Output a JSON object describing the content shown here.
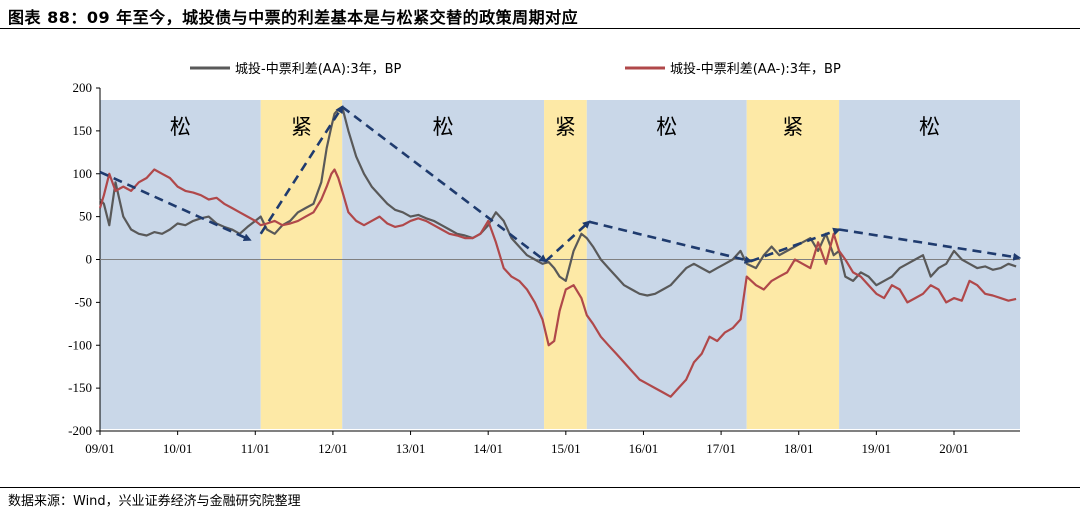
{
  "title": "图表 88：09 年至今，城投债与中票的利差基本是与松紧交替的政策周期对应",
  "source": "数据来源：Wind，兴业证券经济与金融研究院整理",
  "colors": {
    "loose": "#c9d7e8",
    "tight": "#fde9a6",
    "series1": "#595959",
    "series2": "#b0484a",
    "arrow": "#1f3b6e"
  },
  "chart_data": {
    "type": "line",
    "ylim": [
      -200,
      200
    ],
    "yticks": [
      200,
      150,
      100,
      50,
      0,
      -50,
      -100,
      -150,
      -200
    ],
    "xlim": [
      2009.0,
      2020.85
    ],
    "xticks": [
      {
        "x": 2009.0,
        "label": "09/01"
      },
      {
        "x": 2010.0,
        "label": "10/01"
      },
      {
        "x": 2011.0,
        "label": "11/01"
      },
      {
        "x": 2012.0,
        "label": "12/01"
      },
      {
        "x": 2013.0,
        "label": "13/01"
      },
      {
        "x": 2014.0,
        "label": "14/01"
      },
      {
        "x": 2015.0,
        "label": "15/01"
      },
      {
        "x": 2016.0,
        "label": "16/01"
      },
      {
        "x": 2017.0,
        "label": "17/01"
      },
      {
        "x": 2018.0,
        "label": "18/01"
      },
      {
        "x": 2019.0,
        "label": "19/01"
      },
      {
        "x": 2020.0,
        "label": "20/01"
      }
    ],
    "bands": [
      {
        "start": 2009.0,
        "end": 2011.07,
        "regime": "loose",
        "label": "松"
      },
      {
        "start": 2011.07,
        "end": 2012.12,
        "regime": "tight",
        "label": "紧"
      },
      {
        "start": 2012.12,
        "end": 2014.72,
        "regime": "loose",
        "label": "松"
      },
      {
        "start": 2014.72,
        "end": 2015.27,
        "regime": "tight",
        "label": "紧"
      },
      {
        "start": 2015.27,
        "end": 2017.33,
        "regime": "loose",
        "label": "松"
      },
      {
        "start": 2017.33,
        "end": 2018.52,
        "regime": "tight",
        "label": "紧"
      },
      {
        "start": 2018.52,
        "end": 2020.85,
        "regime": "loose",
        "label": "松"
      }
    ],
    "series": [
      {
        "name": "城投-中票利差(AA):3年，BP",
        "x": [
          2009.0,
          2009.05,
          2009.12,
          2009.2,
          2009.3,
          2009.4,
          2009.5,
          2009.6,
          2009.7,
          2009.8,
          2009.9,
          2010.0,
          2010.1,
          2010.2,
          2010.3,
          2010.4,
          2010.5,
          2010.6,
          2010.7,
          2010.8,
          2010.9,
          2011.0,
          2011.07,
          2011.15,
          2011.25,
          2011.35,
          2011.45,
          2011.55,
          2011.65,
          2011.75,
          2011.85,
          2011.92,
          2011.98,
          2012.02,
          2012.07,
          2012.12,
          2012.2,
          2012.3,
          2012.4,
          2012.5,
          2012.6,
          2012.7,
          2012.8,
          2012.9,
          2013.0,
          2013.1,
          2013.2,
          2013.3,
          2013.4,
          2013.5,
          2013.6,
          2013.7,
          2013.8,
          2013.9,
          2014.0,
          2014.1,
          2014.2,
          2014.3,
          2014.4,
          2014.5,
          2014.6,
          2014.7,
          2014.78,
          2014.85,
          2014.92,
          2015.0,
          2015.1,
          2015.2,
          2015.27,
          2015.35,
          2015.45,
          2015.55,
          2015.65,
          2015.75,
          2015.85,
          2015.95,
          2016.05,
          2016.15,
          2016.25,
          2016.35,
          2016.45,
          2016.55,
          2016.65,
          2016.75,
          2016.85,
          2016.95,
          2017.05,
          2017.15,
          2017.25,
          2017.33,
          2017.45,
          2017.55,
          2017.65,
          2017.75,
          2017.85,
          2017.95,
          2018.05,
          2018.15,
          2018.25,
          2018.35,
          2018.45,
          2018.52,
          2018.6,
          2018.7,
          2018.8,
          2018.9,
          2019.0,
          2019.1,
          2019.2,
          2019.3,
          2019.4,
          2019.5,
          2019.6,
          2019.7,
          2019.8,
          2019.9,
          2020.0,
          2020.1,
          2020.2,
          2020.3,
          2020.4,
          2020.5,
          2020.6,
          2020.7,
          2020.8
        ],
        "y": [
          70,
          65,
          40,
          90,
          50,
          35,
          30,
          28,
          32,
          30,
          35,
          42,
          40,
          45,
          48,
          50,
          42,
          38,
          35,
          30,
          38,
          45,
          50,
          35,
          30,
          40,
          45,
          55,
          60,
          65,
          90,
          130,
          155,
          170,
          175,
          178,
          150,
          120,
          100,
          85,
          75,
          65,
          58,
          55,
          50,
          52,
          48,
          45,
          40,
          35,
          30,
          28,
          25,
          30,
          40,
          55,
          45,
          25,
          15,
          5,
          0,
          -5,
          -3,
          -10,
          -20,
          -25,
          10,
          30,
          25,
          15,
          0,
          -10,
          -20,
          -30,
          -35,
          -40,
          -42,
          -40,
          -35,
          -30,
          -20,
          -10,
          -5,
          -10,
          -15,
          -10,
          -5,
          0,
          10,
          -5,
          -10,
          5,
          15,
          5,
          10,
          15,
          20,
          25,
          10,
          30,
          5,
          10,
          -20,
          -25,
          -15,
          -20,
          -30,
          -25,
          -20,
          -10,
          -5,
          0,
          5,
          -20,
          -10,
          -5,
          10,
          0,
          -5,
          -10,
          -8,
          -12,
          -10,
          -5,
          -8
        ],
        "color": "#595959"
      },
      {
        "name": "城投-中票利差(AA-):3年，BP",
        "x": [
          2009.0,
          2009.05,
          2009.12,
          2009.2,
          2009.3,
          2009.4,
          2009.5,
          2009.6,
          2009.7,
          2009.8,
          2009.9,
          2010.0,
          2010.1,
          2010.2,
          2010.3,
          2010.4,
          2010.5,
          2010.6,
          2010.7,
          2010.8,
          2010.9,
          2011.0,
          2011.07,
          2011.15,
          2011.25,
          2011.35,
          2011.45,
          2011.55,
          2011.65,
          2011.75,
          2011.85,
          2011.92,
          2011.98,
          2012.02,
          2012.07,
          2012.12,
          2012.2,
          2012.3,
          2012.4,
          2012.5,
          2012.6,
          2012.7,
          2012.8,
          2012.9,
          2013.0,
          2013.1,
          2013.2,
          2013.3,
          2013.4,
          2013.5,
          2013.6,
          2013.7,
          2013.8,
          2013.9,
          2014.0,
          2014.1,
          2014.2,
          2014.3,
          2014.4,
          2014.5,
          2014.6,
          2014.7,
          2014.78,
          2014.85,
          2014.92,
          2015.0,
          2015.1,
          2015.2,
          2015.27,
          2015.35,
          2015.45,
          2015.55,
          2015.65,
          2015.75,
          2015.85,
          2015.95,
          2016.05,
          2016.15,
          2016.25,
          2016.35,
          2016.45,
          2016.55,
          2016.65,
          2016.75,
          2016.85,
          2016.95,
          2017.05,
          2017.15,
          2017.25,
          2017.33,
          2017.45,
          2017.55,
          2017.65,
          2017.75,
          2017.85,
          2017.95,
          2018.05,
          2018.15,
          2018.25,
          2018.35,
          2018.45,
          2018.52,
          2018.6,
          2018.7,
          2018.8,
          2018.9,
          2019.0,
          2019.1,
          2019.2,
          2019.3,
          2019.4,
          2019.5,
          2019.6,
          2019.7,
          2019.8,
          2019.9,
          2020.0,
          2020.1,
          2020.2,
          2020.3,
          2020.4,
          2020.5,
          2020.6,
          2020.7,
          2020.8
        ],
        "y": [
          60,
          75,
          100,
          80,
          85,
          80,
          90,
          95,
          105,
          100,
          95,
          85,
          80,
          78,
          75,
          70,
          72,
          65,
          60,
          55,
          50,
          45,
          40,
          42,
          45,
          40,
          42,
          45,
          50,
          55,
          70,
          85,
          100,
          105,
          95,
          80,
          55,
          45,
          40,
          45,
          50,
          42,
          38,
          40,
          45,
          48,
          45,
          40,
          35,
          30,
          28,
          25,
          25,
          30,
          45,
          20,
          -10,
          -20,
          -25,
          -35,
          -50,
          -70,
          -100,
          -95,
          -60,
          -35,
          -30,
          -45,
          -65,
          -75,
          -90,
          -100,
          -110,
          -120,
          -130,
          -140,
          -145,
          -150,
          -155,
          -160,
          -150,
          -140,
          -120,
          -110,
          -90,
          -95,
          -85,
          -80,
          -70,
          -20,
          -30,
          -35,
          -25,
          -20,
          -15,
          0,
          -5,
          -10,
          20,
          -5,
          30,
          10,
          0,
          -15,
          -20,
          -30,
          -40,
          -45,
          -30,
          -35,
          -50,
          -45,
          -40,
          -30,
          -35,
          -50,
          -45,
          -48,
          -25,
          -30,
          -40,
          -42,
          -45,
          -48,
          -46
        ],
        "color": "#b0484a"
      }
    ],
    "annotations": [
      {
        "type": "arrow",
        "from": [
          2009.0,
          102
        ],
        "to": [
          2010.93,
          23
        ]
      },
      {
        "type": "arrow",
        "from": [
          2011.07,
          30
        ],
        "to": [
          2012.12,
          178
        ]
      },
      {
        "type": "arrow",
        "from": [
          2012.12,
          178
        ],
        "to": [
          2014.74,
          -2
        ]
      },
      {
        "type": "arrow",
        "from": [
          2014.74,
          -2
        ],
        "to": [
          2015.3,
          44
        ]
      },
      {
        "type": "arrow",
        "from": [
          2015.3,
          44
        ],
        "to": [
          2017.38,
          -2
        ]
      },
      {
        "type": "arrow",
        "from": [
          2017.38,
          -2
        ],
        "to": [
          2018.52,
          35
        ]
      },
      {
        "type": "arrow",
        "from": [
          2018.52,
          35
        ],
        "to": [
          2020.84,
          2
        ]
      }
    ]
  }
}
